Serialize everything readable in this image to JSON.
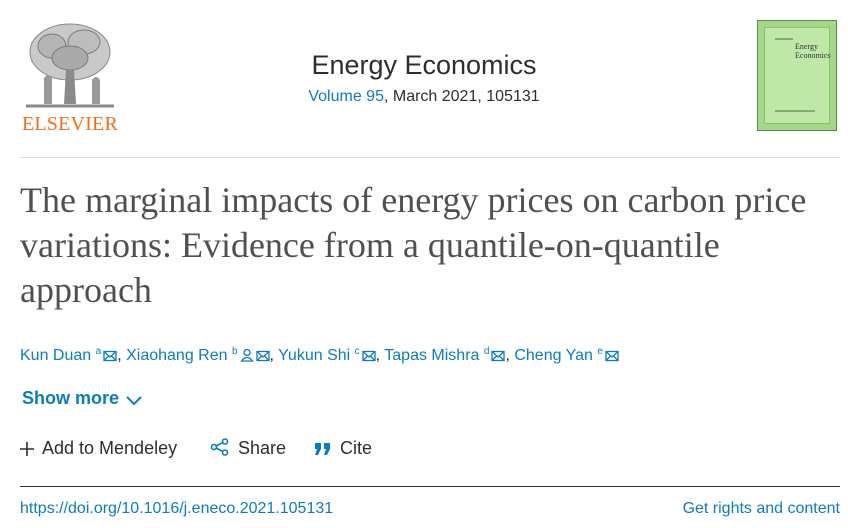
{
  "publisher": {
    "name": "ELSEVIER",
    "logo_icon": "elsevier-tree-logo"
  },
  "journal": {
    "title": "Energy Economics",
    "volume_link": "Volume 95",
    "issue_rest": ", March 2021, 105131"
  },
  "cover": {
    "title_line1": "Energy",
    "title_line2": "Economics",
    "color": "#a3d88a"
  },
  "article": {
    "title": "The marginal impacts of energy prices on carbon price variations: Evidence from a quantile-on-quantile approach"
  },
  "authors": [
    {
      "name": "Kun Duan",
      "sup": "a"
    },
    {
      "name": "Xiaohang Ren",
      "sup": "b"
    },
    {
      "name": "Yukun Shi",
      "sup": "c"
    },
    {
      "name": "Tapas Mishra",
      "sup": "d"
    },
    {
      "name": "Cheng Yan",
      "sup": "e"
    }
  ],
  "author_separator": ",",
  "show_more": "Show more",
  "actions": {
    "mendeley": "Add to Mendeley",
    "share": "Share",
    "cite": "Cite"
  },
  "doi": "https://doi.org/10.1016/j.eneco.2021.105131",
  "rights": "Get rights and content",
  "colors": {
    "link": "#0c7dbb",
    "brand": "#e9711c",
    "text": "#2e2e2e"
  }
}
